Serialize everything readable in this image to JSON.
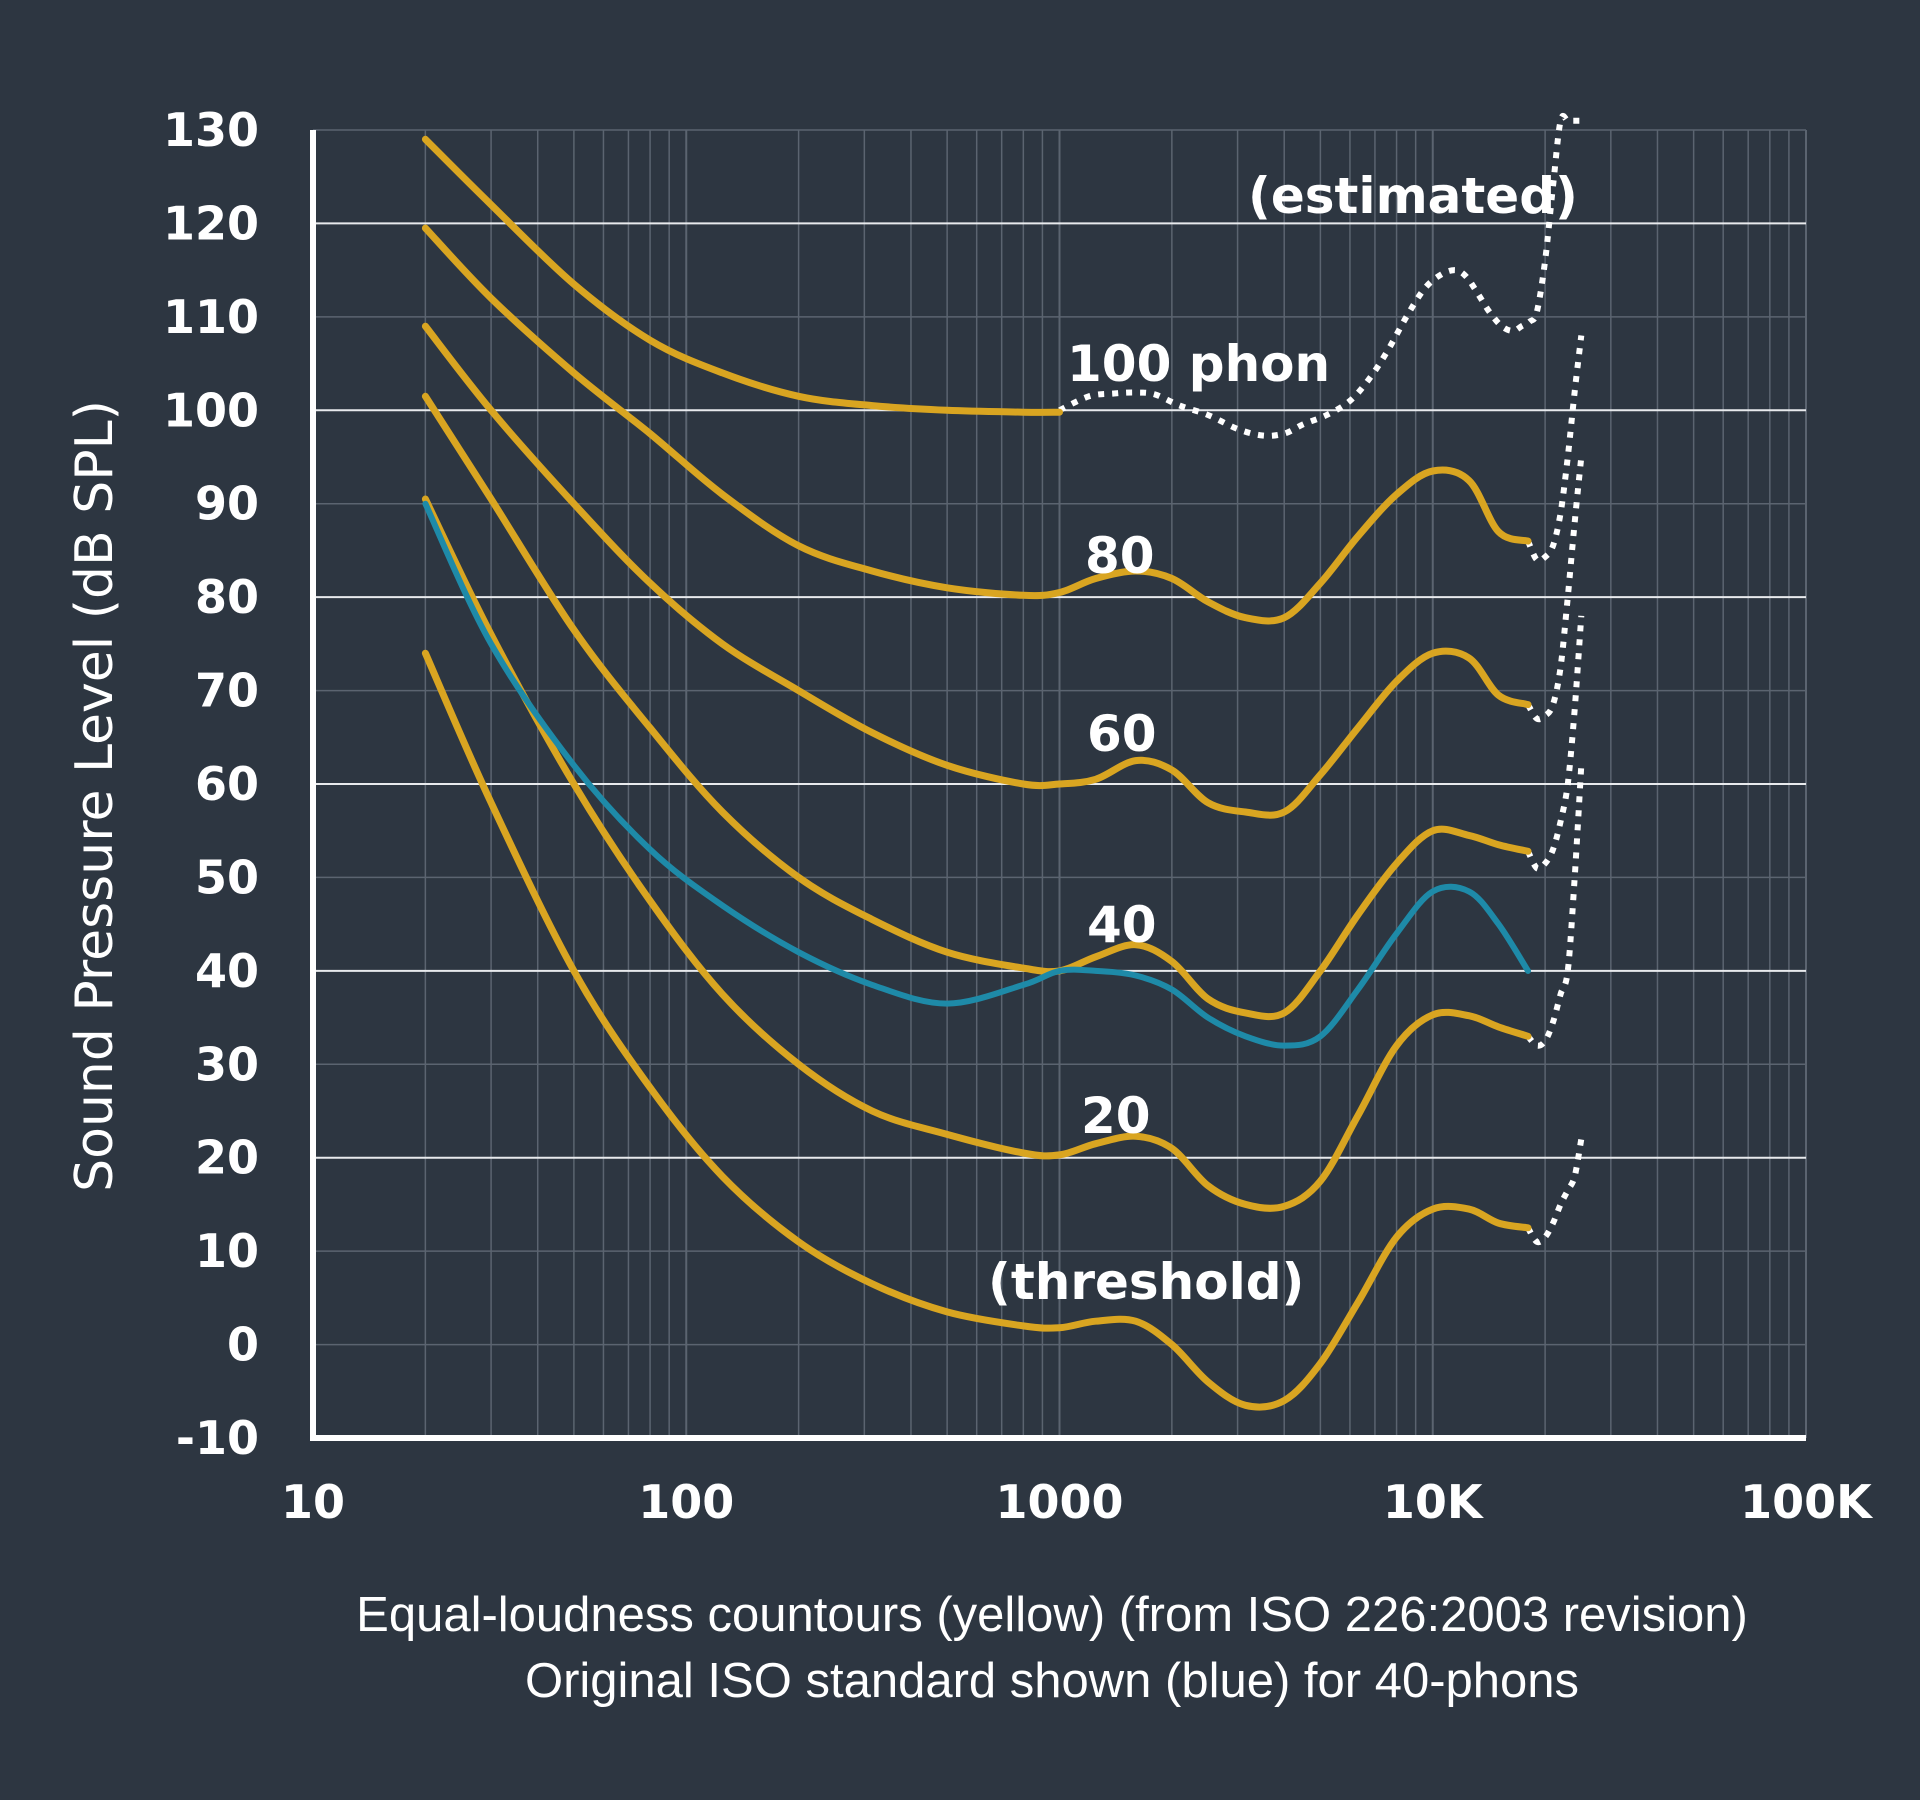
{
  "chart_data": {
    "type": "line",
    "x_scale": "log",
    "xlim": [
      10,
      100000
    ],
    "ylim": [
      -10,
      130
    ],
    "ylabel": "Sound Pressure Level (dB SPL)",
    "yticks": [
      "130",
      "120",
      "110",
      "100",
      "90",
      "80",
      "70",
      "60",
      "50",
      "40",
      "30",
      "20",
      "10",
      "0",
      "-10"
    ],
    "xticks": [
      "10",
      "100",
      "1000",
      "10K",
      "100K"
    ],
    "grid": true,
    "colors": {
      "background": "#2d3641",
      "contour": "#d9a521",
      "original": "#1e8aa8",
      "estimated": "#ffffff",
      "grid": "#5b6470"
    },
    "curve_labels": [
      "100 phon",
      "80",
      "60",
      "40",
      "20",
      "(threshold)",
      "(estimated)"
    ],
    "caption": [
      "Equal-loudness countours (yellow) (from ISO 226:2003 revision)",
      "Original ISO standard shown (blue) for 40-phons"
    ],
    "series": [
      {
        "style": "contour",
        "x": [
          20,
          30,
          50,
          80,
          125,
          200,
          315,
          500,
          800,
          1000
        ],
        "y": [
          129,
          122,
          113.5,
          107.5,
          104,
          101.5,
          100.5,
          100,
          99.8,
          99.8
        ]
      },
      {
        "style": "contour",
        "x": [
          20,
          30,
          50,
          80,
          125,
          200,
          315,
          500,
          800,
          1000,
          1250,
          1600,
          2000,
          2500,
          3150,
          4000,
          5000,
          6300,
          8000,
          10000,
          12500,
          15000,
          18000
        ],
        "y": [
          119.5,
          112,
          104,
          97.5,
          91,
          85.5,
          82.8,
          81,
          80.2,
          80.5,
          82,
          82.8,
          82,
          79.5,
          77.8,
          77.8,
          81.5,
          86.5,
          91,
          93.5,
          92.5,
          87,
          86
        ]
      },
      {
        "style": "contour",
        "x": [
          20,
          30,
          50,
          80,
          125,
          200,
          315,
          500,
          800,
          1000,
          1250,
          1600,
          2000,
          2500,
          3150,
          4000,
          5000,
          6300,
          8000,
          10000,
          12500,
          15000,
          18000
        ],
        "y": [
          109,
          100,
          90,
          81.5,
          75,
          70,
          65.5,
          62,
          60,
          60,
          60.5,
          62.5,
          61.5,
          58,
          57,
          57,
          61,
          66,
          71,
          74,
          73.5,
          69.5,
          68.5
        ]
      },
      {
        "style": "contour",
        "x": [
          20,
          30,
          50,
          80,
          125,
          200,
          315,
          500,
          800,
          1000,
          1250,
          1600,
          2000,
          2500,
          3150,
          4000,
          5000,
          6300,
          8000,
          10000,
          12500,
          15000,
          18000
        ],
        "y": [
          101.5,
          90.5,
          76.5,
          66,
          57,
          50,
          45.5,
          42,
          40.3,
          40,
          41.5,
          42.8,
          41,
          37,
          35.5,
          35.5,
          40,
          46,
          51.5,
          55,
          54.5,
          53.5,
          52.8
        ]
      },
      {
        "style": "contour",
        "x": [
          20,
          30,
          50,
          80,
          125,
          200,
          315,
          500,
          800,
          1000,
          1250,
          1600,
          2000,
          2500,
          3150,
          4000,
          5000,
          6300,
          8000,
          10000,
          12500,
          15000,
          18000
        ],
        "y": [
          90.5,
          76,
          60,
          47.5,
          37.5,
          30,
          25,
          22.5,
          20.5,
          20.3,
          21.5,
          22.3,
          21,
          17,
          15,
          14.8,
          17.5,
          24.5,
          32,
          35.3,
          35.2,
          34,
          33
        ]
      },
      {
        "style": "contour",
        "x": [
          20,
          30,
          50,
          80,
          125,
          200,
          315,
          500,
          800,
          1000,
          1250,
          1600,
          2000,
          2500,
          3150,
          4000,
          5000,
          6300,
          8000,
          10000,
          12500,
          15000,
          18000
        ],
        "y": [
          74,
          58,
          40,
          27.5,
          18,
          11,
          6.5,
          3.5,
          2,
          1.8,
          2.5,
          2.5,
          0,
          -4,
          -6.5,
          -6,
          -2,
          4.5,
          11.5,
          14.5,
          14.5,
          13,
          12.5
        ]
      },
      {
        "style": "original",
        "x": [
          20,
          30,
          50,
          80,
          125,
          200,
          315,
          500,
          800,
          1000,
          1250,
          1600,
          2000,
          2500,
          3150,
          4000,
          5000,
          6300,
          8000,
          10000,
          12500,
          15000,
          18000
        ],
        "y": [
          90,
          75,
          62,
          53,
          47,
          42,
          38.5,
          36.5,
          38.5,
          40,
          40,
          39.5,
          38,
          35,
          33,
          32,
          33,
          38,
          44,
          48.5,
          48.5,
          45,
          40
        ]
      },
      {
        "style": "estimated",
        "x": [
          1000,
          1200,
          1400,
          1600,
          1800,
          2100,
          2500,
          3000,
          3500,
          4000,
          4500,
          5200,
          6000,
          6800,
          7600,
          8500,
          9500,
          10500,
          11500,
          12300,
          13200,
          14200,
          15300,
          16400,
          17300,
          18200,
          19000,
          20000,
          21000,
          22000,
          23000,
          24000,
          25000
        ],
        "y": [
          100,
          101.5,
          101.8,
          101.9,
          101.7,
          100.5,
          99.5,
          98,
          97.3,
          97.5,
          98.5,
          99.5,
          101,
          103.5,
          106.5,
          110,
          113,
          114.5,
          115,
          114.3,
          112.5,
          110.5,
          109,
          108.5,
          109,
          109.5,
          110.5,
          116,
          124,
          131,
          131,
          131,
          131
        ]
      },
      {
        "style": "estimated",
        "x": [
          18000,
          19000,
          20000,
          21000,
          22000,
          23000,
          24000,
          25000
        ],
        "y": [
          86,
          84,
          84.3,
          85.5,
          89,
          95,
          102,
          108
        ]
      },
      {
        "style": "estimated",
        "x": [
          18000,
          19000,
          20000,
          21000,
          22000,
          23000,
          24000,
          25000
        ],
        "y": [
          68.5,
          67,
          67.3,
          68.5,
          72.5,
          80,
          88,
          95
        ]
      },
      {
        "style": "estimated",
        "x": [
          18000,
          19000,
          20000,
          21000,
          22000,
          23000,
          24000,
          25000
        ],
        "y": [
          52.8,
          51,
          51.5,
          53,
          56,
          60,
          68,
          78
        ]
      },
      {
        "style": "estimated",
        "x": [
          18000,
          19000,
          20000,
          21000,
          22000,
          23000,
          24000,
          25000
        ],
        "y": [
          33,
          32,
          32.5,
          34.5,
          37.5,
          40,
          50,
          62
        ]
      },
      {
        "style": "estimated",
        "x": [
          18000,
          19000,
          20000,
          21000,
          22000,
          23000,
          24000,
          25000
        ],
        "y": [
          12.5,
          11,
          11.5,
          13,
          15,
          16.5,
          18,
          22
        ]
      }
    ]
  }
}
